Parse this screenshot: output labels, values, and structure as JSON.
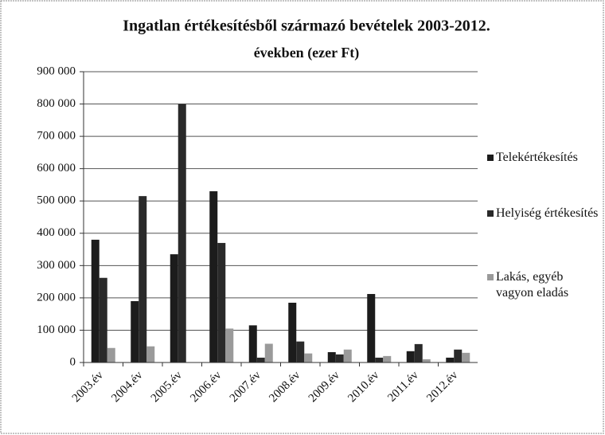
{
  "chart_data": {
    "type": "bar",
    "title": "Ingatlan értékesítésből származó bevételek 2003-2012.",
    "subtitle": "években (ezer Ft)",
    "categories": [
      "2003.év",
      "2004.év",
      "2005.év",
      "2006.év",
      "2007.év",
      "2008.év",
      "2009.év",
      "2010.év",
      "2011.év",
      "2012.év"
    ],
    "series": [
      {
        "name": "Telekértékesítés",
        "color": "#1c1c1c",
        "values": [
          380000,
          190000,
          335000,
          530000,
          115000,
          185000,
          32000,
          212000,
          35000,
          15000
        ]
      },
      {
        "name": "Helyiség értékesítés",
        "color": "#2a2a2a",
        "values": [
          262000,
          515000,
          800000,
          370000,
          15000,
          65000,
          25000,
          15000,
          57000,
          40000
        ]
      },
      {
        "name": "Lakás, egyéb vagyon eladás",
        "color": "#9a9a9a",
        "values": [
          45000,
          50000,
          0,
          105000,
          58000,
          28000,
          40000,
          20000,
          10000,
          30000
        ]
      }
    ],
    "ylim": [
      0,
      900000
    ],
    "yticks": [
      0,
      {
        "value": 100000,
        "label": "100 000"
      },
      {
        "value": 200000,
        "label": "200 000"
      },
      {
        "value": 300000,
        "label": "300 000"
      },
      {
        "value": 400000,
        "label": "400 000"
      },
      {
        "value": 500000,
        "label": "500 000"
      },
      {
        "value": 600000,
        "label": "600 000"
      },
      {
        "value": 700000,
        "label": "700 000"
      },
      {
        "value": 800000,
        "label": "800 000"
      },
      {
        "value": 900000,
        "label": "900 000"
      }
    ],
    "grid": true,
    "legend": "right"
  }
}
